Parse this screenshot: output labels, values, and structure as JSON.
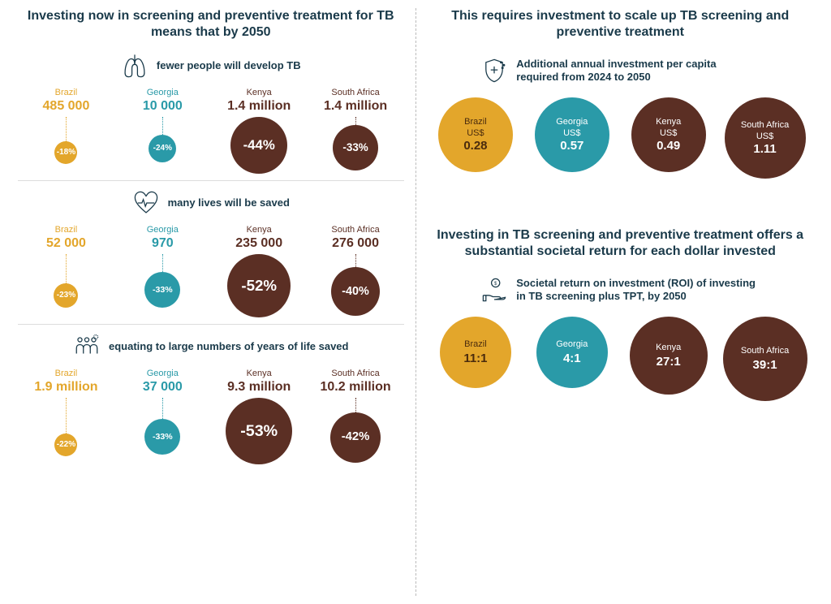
{
  "colors": {
    "brazil": "#e3a62b",
    "georgia": "#2a9aa8",
    "kenya": "#5b2f24",
    "south_africa": "#5b2f24",
    "title": "#1a3a4a",
    "brazil_text_dark": "#4a2b0d"
  },
  "left": {
    "title": "Investing now in screening and preventive treatment for TB means that by 2050",
    "sections": [
      {
        "icon": "lungs",
        "subtitle": "fewer people will develop TB",
        "items": [
          {
            "country": "Brazil",
            "value": "485 000",
            "pct": "-18%",
            "color": "#e3a62b",
            "bubble_size": 28,
            "connector": 30,
            "text_dark": false
          },
          {
            "country": "Georgia",
            "value": "10 000",
            "pct": "-24%",
            "color": "#2a9aa8",
            "bubble_size": 34,
            "connector": 22,
            "text_dark": false
          },
          {
            "country": "Kenya",
            "value": "1.4 million",
            "pct": "-44%",
            "color": "#5b2f24",
            "bubble_size": 70,
            "connector": 0,
            "text_dark": false
          },
          {
            "country": "South Africa",
            "value": "1.4 million",
            "pct": "-33%",
            "color": "#5b2f24",
            "bubble_size": 56,
            "connector": 10,
            "text_dark": false
          }
        ]
      },
      {
        "icon": "heart",
        "subtitle": "many lives will be saved",
        "items": [
          {
            "country": "Brazil",
            "value": "52 000",
            "pct": "-23%",
            "color": "#e3a62b",
            "bubble_size": 30,
            "connector": 36,
            "text_dark": false
          },
          {
            "country": "Georgia",
            "value": "970",
            "pct": "-33%",
            "color": "#2a9aa8",
            "bubble_size": 44,
            "connector": 22,
            "text_dark": false
          },
          {
            "country": "Kenya",
            "value": "235 000",
            "pct": "-52%",
            "color": "#5b2f24",
            "bubble_size": 78,
            "connector": 0,
            "text_dark": false
          },
          {
            "country": "South Africa",
            "value": "276 000",
            "pct": "-40%",
            "color": "#5b2f24",
            "bubble_size": 60,
            "connector": 16,
            "text_dark": false
          }
        ]
      },
      {
        "icon": "people",
        "subtitle": "equating to large numbers of years of life saved",
        "items": [
          {
            "country": "Brazil",
            "value": "1.9 million",
            "pct": "-22%",
            "color": "#e3a62b",
            "bubble_size": 28,
            "connector": 44,
            "text_dark": false
          },
          {
            "country": "Georgia",
            "value": "37 000",
            "pct": "-33%",
            "color": "#2a9aa8",
            "bubble_size": 44,
            "connector": 26,
            "text_dark": false
          },
          {
            "country": "Kenya",
            "value": "9.3 million",
            "pct": "-53%",
            "color": "#5b2f24",
            "bubble_size": 82,
            "connector": 0,
            "text_dark": false
          },
          {
            "country": "South Africa",
            "value": "10.2 million",
            "pct": "-42%",
            "color": "#5b2f24",
            "bubble_size": 62,
            "connector": 18,
            "text_dark": false
          }
        ]
      }
    ]
  },
  "right": {
    "invest": {
      "title": "This requires investment to scale up TB screening and preventive treatment",
      "subtitle": "Additional annual investment per capita required from 2024 to 2050",
      "icon": "shield",
      "items": [
        {
          "country": "Brazil",
          "prefix": "US$",
          "value": "0.28",
          "color": "#e3a62b",
          "size": 92,
          "text_color": "#4a2b0d"
        },
        {
          "country": "Georgia",
          "prefix": "US$",
          "value": "0.57",
          "color": "#2a9aa8",
          "size": 92,
          "text_color": "#ffffff"
        },
        {
          "country": "Kenya",
          "prefix": "US$",
          "value": "0.49",
          "color": "#5b2f24",
          "size": 92,
          "text_color": "#ffffff"
        },
        {
          "country": "South Africa",
          "prefix": "US$",
          "value": "1.11",
          "color": "#5b2f24",
          "size": 100,
          "text_color": "#ffffff"
        }
      ]
    },
    "roi": {
      "title": "Investing in TB screening and preventive treatment offers a substantial societal return for each dollar invested",
      "subtitle": "Societal return on investment (ROI) of investing in TB screening plus TPT, by 2050",
      "icon": "hand",
      "items": [
        {
          "country": "Brazil",
          "value": "11:1",
          "color": "#e3a62b",
          "size": 88,
          "text_color": "#4a2b0d"
        },
        {
          "country": "Georgia",
          "value": "4:1",
          "color": "#2a9aa8",
          "size": 88,
          "text_color": "#ffffff"
        },
        {
          "country": "Kenya",
          "value": "27:1",
          "color": "#5b2f24",
          "size": 96,
          "text_color": "#ffffff"
        },
        {
          "country": "South Africa",
          "value": "39:1",
          "color": "#5b2f24",
          "size": 104,
          "text_color": "#ffffff"
        }
      ]
    }
  }
}
